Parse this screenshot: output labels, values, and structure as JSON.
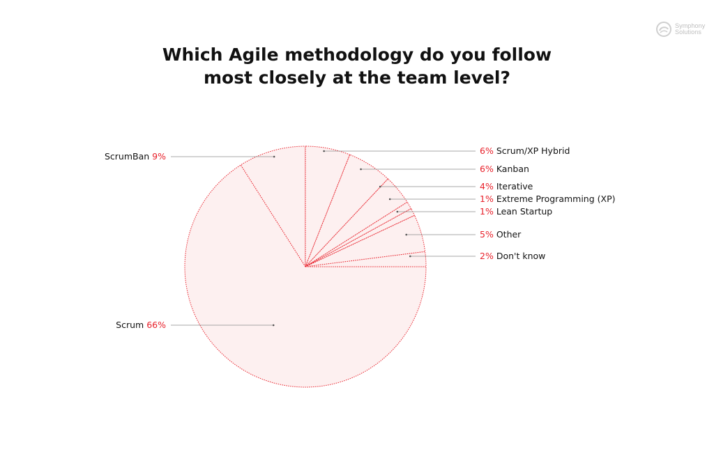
{
  "logo": {
    "line1": "Symphony",
    "line2": "Solutions",
    "icon": "swirl-logo-icon"
  },
  "chart_data": {
    "type": "pie",
    "title": "Which Agile methodology do you follow most closely at the team level?",
    "title_lines": [
      "Which Agile methodology do you follow",
      "most closely at the team level?"
    ],
    "slices": [
      {
        "label": "Scrum",
        "value": 66,
        "pct_label": "66%"
      },
      {
        "label": "ScrumBan",
        "value": 9,
        "pct_label": "9%"
      },
      {
        "label": "Scrum/XP Hybrid",
        "value": 6,
        "pct_label": "6%"
      },
      {
        "label": "Kanban",
        "value": 6,
        "pct_label": "6%"
      },
      {
        "label": "Iterative",
        "value": 4,
        "pct_label": "4%"
      },
      {
        "label": "Extreme Programming (XP)",
        "value": 1,
        "pct_label": "1%"
      },
      {
        "label": "Lean Startup",
        "value": 1,
        "pct_label": "1%"
      },
      {
        "label": "Other",
        "value": 5,
        "pct_label": "5%"
      },
      {
        "label": "Don't know",
        "value": 2,
        "pct_label": "2%"
      }
    ],
    "colors": {
      "fill": "#fdf0f0",
      "stroke": "#e8202a",
      "leader": "#8a8a8a",
      "percent": "#e8202a",
      "text": "#111111"
    }
  }
}
